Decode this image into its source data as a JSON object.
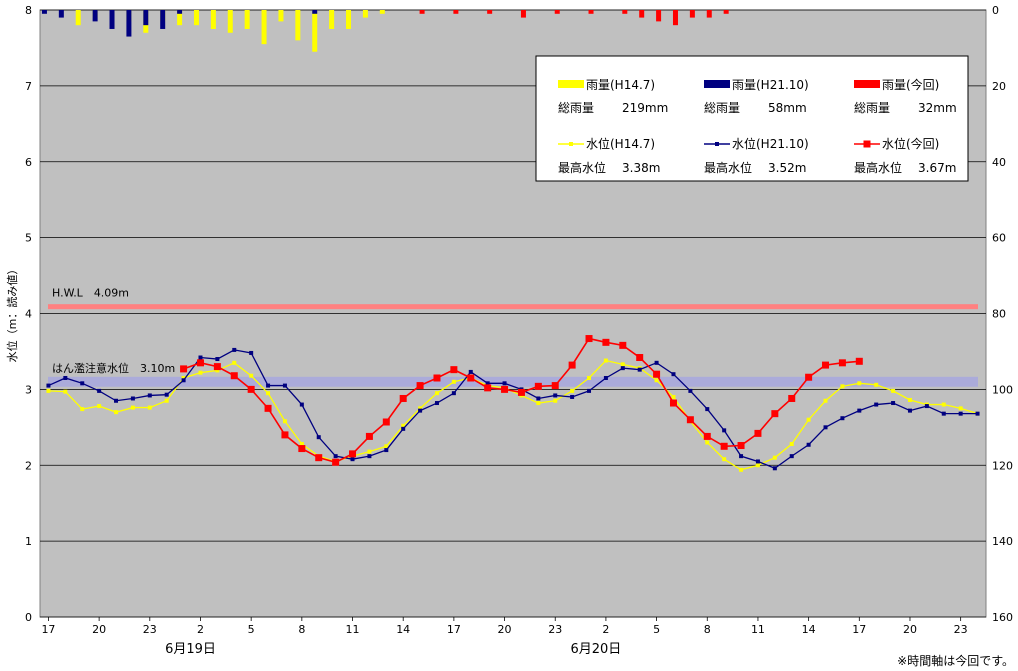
{
  "chart_data": {
    "type": "line",
    "ylabel": "水位（m：読み値）",
    "ylim": [
      0,
      8
    ],
    "y_ticks": [
      "0",
      "1",
      "2",
      "3",
      "4",
      "5",
      "6",
      "7",
      "8"
    ],
    "y2lim": [
      0,
      160
    ],
    "y2_reversed": true,
    "y2_ticks": [
      "0",
      "20",
      "40",
      "60",
      "80",
      "100",
      "120",
      "140",
      "160"
    ],
    "x_tick_labels": [
      "17",
      "20",
      "23",
      "2",
      "5",
      "8",
      "11",
      "14",
      "17",
      "20",
      "23",
      "2",
      "5",
      "8",
      "11",
      "14",
      "17",
      "20",
      "23"
    ],
    "date_labels": [
      "6月19日",
      "6月20日"
    ],
    "grid": true,
    "legend_position": "top-right",
    "reference_lines": [
      {
        "label": "H.W.L　4.09m",
        "value": 4.09,
        "color": "#ff8080"
      },
      {
        "label": "はん濫注意水位　3.10m",
        "value": 3.1,
        "color": "#9999ee"
      }
    ],
    "legend": {
      "rain": [
        {
          "name": "雨量(H14.7)",
          "total_label": "総雨量",
          "total": "219mm",
          "color": "#ffff00"
        },
        {
          "name": "雨量(H21.10)",
          "total_label": "総雨量",
          "total": "58mm",
          "color": "#000080"
        },
        {
          "name": "雨量(今回)",
          "total_label": "総雨量",
          "total": "32mm",
          "color": "#ff0000"
        }
      ],
      "level": [
        {
          "name": "水位(H14.7)",
          "max_label": "最高水位",
          "max": "3.38m",
          "color": "#ffff00"
        },
        {
          "name": "水位(H21.10)",
          "max_label": "最高水位",
          "max": "3.52m",
          "color": "#000080"
        },
        {
          "name": "水位(今回)",
          "max_label": "最高水位",
          "max": "3.67m",
          "color": "#ff0000"
        }
      ]
    },
    "rain_series": [
      {
        "legend": "雨量(H14.7)",
        "color": "#ffff00",
        "values": [
          0,
          0,
          4,
          2,
          1,
          3,
          6,
          3,
          4,
          4,
          5,
          6,
          5,
          9,
          3,
          8,
          11,
          5,
          5,
          2,
          1,
          0,
          0,
          0,
          0,
          0,
          0,
          0,
          0,
          0,
          0,
          0,
          0,
          0,
          0,
          0,
          0,
          0,
          0,
          0,
          0,
          0,
          0,
          0,
          0,
          0,
          0,
          0,
          0,
          0,
          0,
          0,
          0,
          0,
          0,
          0,
          0,
          0,
          0,
          0,
          0,
          0,
          0,
          0,
          0,
          0,
          0,
          0,
          0,
          0,
          0,
          0,
          0,
          0,
          0,
          0,
          0,
          0,
          0,
          0,
          0,
          0,
          0,
          0,
          0,
          0,
          0,
          0,
          0,
          0,
          0,
          0,
          0,
          0,
          0,
          0,
          0,
          0,
          0,
          0,
          0,
          0,
          0,
          0,
          0,
          0,
          0,
          0,
          0,
          0,
          0,
          0,
          0,
          0,
          0,
          0,
          0,
          0,
          0,
          0,
          0,
          0
        ]
      },
      {
        "legend": "雨量(H21.10)",
        "color": "#000080",
        "values": [
          1,
          2,
          0,
          3,
          5,
          7,
          4,
          5,
          1,
          0,
          0,
          0,
          0,
          0,
          0,
          0,
          1,
          0,
          0,
          0,
          0,
          0,
          0,
          0,
          0,
          0,
          0,
          0,
          0,
          0,
          0,
          0,
          0,
          0,
          0,
          0,
          0,
          0,
          0,
          0,
          0,
          0,
          0,
          0,
          0,
          0,
          0,
          0,
          0,
          0,
          0,
          0,
          0,
          0,
          0,
          0,
          0,
          0,
          0,
          0,
          0,
          0,
          0,
          0,
          0,
          0,
          0,
          0,
          0,
          0,
          0,
          0,
          0,
          0,
          0,
          0,
          0,
          0,
          0,
          0,
          0,
          0,
          0,
          0,
          0,
          0,
          0,
          0,
          0,
          0,
          0,
          0,
          0,
          0,
          0,
          0,
          0,
          0,
          0,
          0,
          0,
          0,
          0,
          0,
          0,
          0,
          0,
          0,
          0,
          0,
          0,
          0,
          0,
          0,
          0,
          0,
          0,
          0,
          0,
          0,
          0,
          0
        ]
      },
      {
        "legend": "雨量(今回)",
        "color": "#ff0000",
        "values": [
          0,
          0,
          0,
          0,
          0,
          0,
          0,
          0,
          0,
          0,
          0,
          0,
          0,
          0,
          0,
          0,
          0,
          0,
          0,
          0,
          0,
          0,
          1,
          0,
          1,
          0,
          1,
          0,
          2,
          0,
          1,
          0,
          1,
          0,
          1,
          2,
          3,
          4,
          2,
          2,
          1
        ]
      }
    ],
    "level_series": [
      {
        "legend": "水位(H14.7)",
        "color": "#ffff00",
        "marker": "square-small",
        "x": [
          0,
          1,
          2,
          3,
          4,
          5,
          6,
          7,
          8,
          9,
          10,
          11,
          12,
          13,
          14,
          15,
          16,
          17,
          18,
          19,
          20,
          21,
          22,
          23,
          24,
          25,
          26,
          27,
          28,
          29,
          30,
          31,
          32,
          33,
          34,
          35,
          36,
          37,
          38,
          39,
          40,
          41,
          42,
          43,
          44,
          45,
          46,
          47,
          48,
          49,
          50,
          51,
          52,
          53,
          54,
          55
        ],
        "y": [
          2.98,
          2.97,
          2.74,
          2.78,
          2.7,
          2.76,
          2.76,
          2.85,
          3.15,
          3.22,
          3.25,
          3.35,
          3.18,
          2.95,
          2.58,
          2.28,
          2.12,
          2.05,
          2.12,
          2.18,
          2.25,
          2.52,
          2.75,
          2.95,
          3.1,
          3.15,
          3.05,
          3.02,
          2.92,
          2.82,
          2.85,
          2.98,
          3.15,
          3.38,
          3.33,
          3.28,
          3.12,
          2.9,
          2.58,
          2.3,
          2.08,
          1.94,
          2.0,
          2.1,
          2.28,
          2.6,
          2.85,
          3.04,
          3.08,
          3.06,
          2.98,
          2.86,
          2.8,
          2.8,
          2.75,
          2.68
        ]
      },
      {
        "legend": "水位(H21.10)",
        "color": "#000080",
        "marker": "square-small",
        "x": [
          0,
          1,
          2,
          3,
          4,
          5,
          6,
          7,
          8,
          9,
          10,
          11,
          12,
          13,
          14,
          15,
          16,
          17,
          18,
          19,
          20,
          21,
          22,
          23,
          24,
          25,
          26,
          27,
          28,
          29,
          30,
          31,
          32,
          33,
          34,
          35,
          36,
          37,
          38,
          39,
          40,
          41,
          42,
          43,
          44,
          45,
          46,
          47,
          48,
          49,
          50,
          51,
          52,
          53,
          54,
          55
        ],
        "y": [
          3.05,
          3.15,
          3.08,
          2.98,
          2.85,
          2.88,
          2.92,
          2.93,
          3.12,
          3.42,
          3.4,
          3.52,
          3.48,
          3.05,
          3.05,
          2.8,
          2.37,
          2.12,
          2.08,
          2.12,
          2.2,
          2.48,
          2.72,
          2.82,
          2.95,
          3.23,
          3.08,
          3.08,
          3.0,
          2.88,
          2.92,
          2.9,
          2.98,
          3.15,
          3.28,
          3.26,
          3.35,
          3.2,
          2.98,
          2.74,
          2.46,
          2.12,
          2.05,
          1.96,
          2.12,
          2.27,
          2.5,
          2.62,
          2.72,
          2.8,
          2.82,
          2.72,
          2.78,
          2.68,
          2.68,
          2.68
        ]
      },
      {
        "legend": "水位(今回)",
        "color": "#ff0000",
        "marker": "square",
        "x": [
          8,
          9,
          10,
          11,
          12,
          13,
          14,
          15,
          16,
          17,
          18,
          19,
          20,
          21,
          22,
          23,
          24,
          25,
          26,
          27,
          28,
          29,
          30,
          31,
          32,
          33,
          34,
          35,
          36,
          37,
          38,
          39,
          40,
          41,
          42,
          43,
          44,
          45,
          46,
          47,
          48
        ],
        "y": [
          3.27,
          3.35,
          3.3,
          3.18,
          3.0,
          2.75,
          2.4,
          2.22,
          2.1,
          2.04,
          2.15,
          2.38,
          2.57,
          2.88,
          3.05,
          3.15,
          3.26,
          3.15,
          3.02,
          3.0,
          2.96,
          3.04,
          3.05,
          3.32,
          3.67,
          3.62,
          3.58,
          3.42,
          3.2,
          2.82,
          2.6,
          2.38,
          2.25,
          2.26,
          2.42,
          2.68,
          2.88,
          3.16,
          3.32,
          3.35,
          3.37
        ]
      }
    ]
  },
  "notes": {
    "time_axis": "※時間軸は今回です。"
  }
}
